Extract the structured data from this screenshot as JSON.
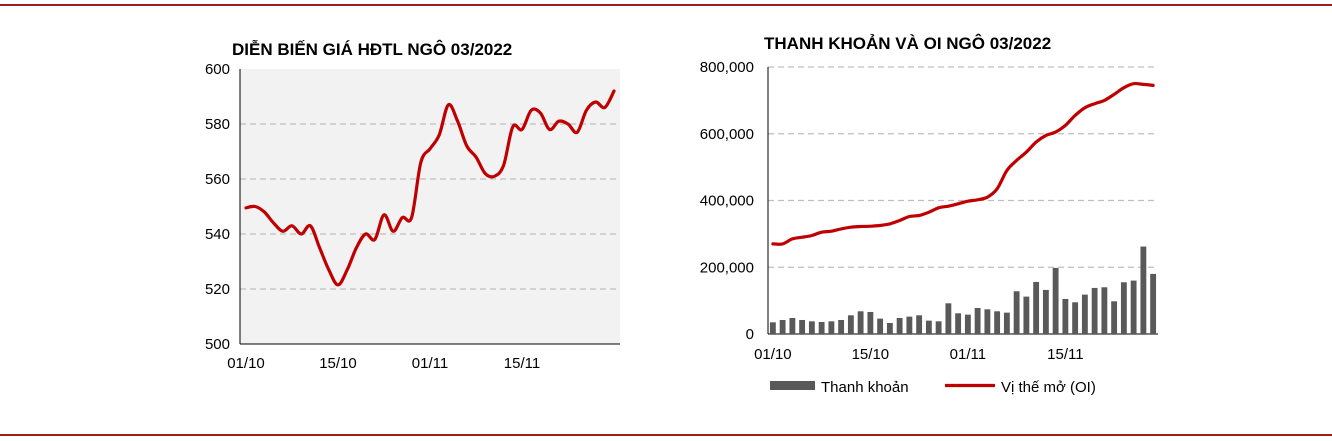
{
  "colors": {
    "accent": "#a31c1c",
    "plot_bg": "#f2f2f2",
    "grid": "#bfbfbf",
    "bar": "#595959",
    "line": "#c00000"
  },
  "chart_data": [
    {
      "type": "line",
      "title": "DIỄN BIẾN GIÁ HĐTL NGÔ 03/2022",
      "xlabel": "",
      "ylabel": "",
      "ylim": [
        500,
        600
      ],
      "yticks": [
        500,
        520,
        540,
        560,
        580,
        600
      ],
      "xticks": [
        "01/10",
        "15/10",
        "01/11",
        "15/11"
      ],
      "grid": "horizontal dashed",
      "series": [
        {
          "values": [
            549.5,
            550,
            548,
            544,
            541,
            543,
            540,
            543,
            535,
            527,
            521.5,
            527,
            535,
            540,
            538,
            547,
            541,
            546,
            546,
            566,
            571,
            576,
            587,
            581,
            572,
            568,
            562,
            561,
            565,
            579,
            578,
            585,
            584,
            578,
            581,
            580,
            577,
            585,
            588,
            586,
            592
          ]
        }
      ]
    },
    {
      "type": "bar+line",
      "title": "THANH KHOẢN VÀ OI NGÔ 03/2022",
      "xlabel": "",
      "ylabel": "",
      "ylim": [
        0,
        800000
      ],
      "yticks": [
        "0",
        "200,000",
        "400,000",
        "600,000",
        "800,000"
      ],
      "xticks": [
        "01/10",
        "15/10",
        "01/11",
        "15/11"
      ],
      "grid": "horizontal dashed",
      "legend_position": "bottom",
      "series": [
        {
          "name": "Thanh khoản",
          "type": "bar",
          "values": [
            35000,
            42000,
            48000,
            42000,
            38000,
            36000,
            38000,
            42000,
            56000,
            68000,
            66000,
            46000,
            33000,
            48000,
            52000,
            56000,
            40000,
            38000,
            92000,
            62000,
            58000,
            78000,
            74000,
            68000,
            64000,
            128000,
            112000,
            156000,
            132000,
            198000,
            105000,
            95000,
            118000,
            138000,
            140000,
            98000,
            155000,
            160000,
            262000,
            180000
          ]
        },
        {
          "name": "Vị thế mở (OI)",
          "type": "line",
          "values": [
            270000,
            270000,
            285000,
            290000,
            295000,
            305000,
            308000,
            315000,
            320000,
            322000,
            323000,
            325000,
            330000,
            340000,
            352000,
            355000,
            365000,
            378000,
            383000,
            390000,
            398000,
            402000,
            410000,
            435000,
            490000,
            520000,
            545000,
            575000,
            595000,
            605000,
            625000,
            655000,
            678000,
            690000,
            700000,
            718000,
            738000,
            750000,
            748000,
            745000
          ]
        }
      ]
    }
  ]
}
